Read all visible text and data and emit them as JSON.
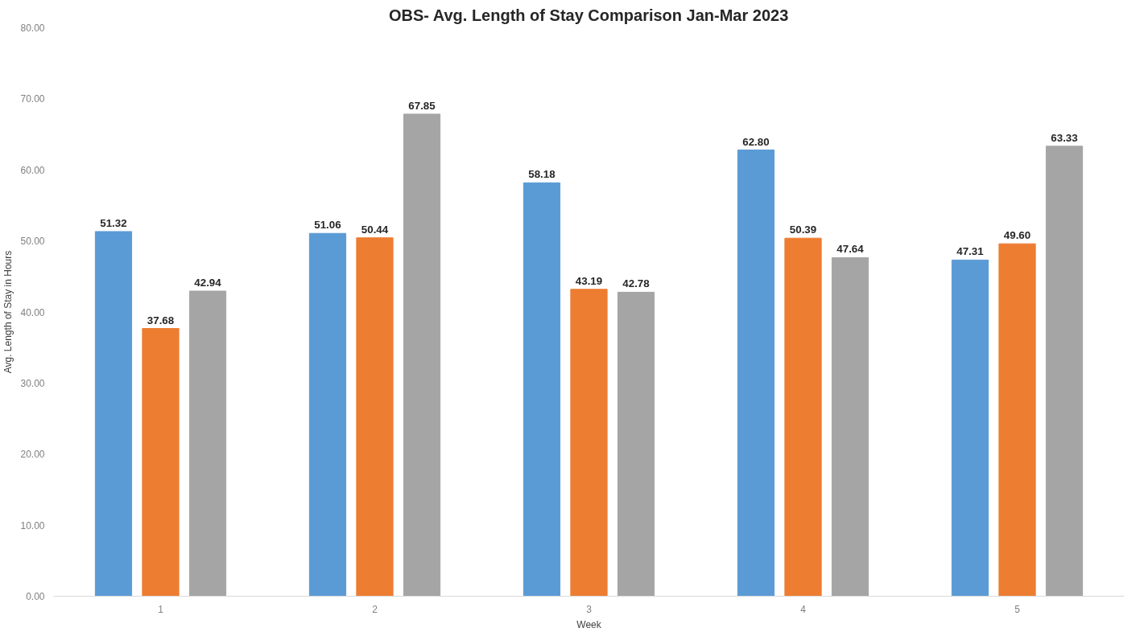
{
  "chart_data": {
    "type": "bar",
    "title": "OBS- Avg. Length of Stay Comparison Jan-Mar 2023",
    "xlabel": "Week",
    "ylabel": "Avg. Length of Stay in Hours",
    "categories": [
      "1",
      "2",
      "3",
      "4",
      "5"
    ],
    "series": [
      {
        "color": "#5b9bd5",
        "values": [
          51.32,
          51.06,
          58.18,
          62.8,
          47.31
        ],
        "value_labels": [
          "51.32",
          "51.06",
          "58.18",
          "62.80",
          "47.31"
        ]
      },
      {
        "color": "#ed7d31",
        "values": [
          37.68,
          50.44,
          43.19,
          50.39,
          49.6
        ],
        "value_labels": [
          "37.68",
          "50.44",
          "43.19",
          "50.39",
          "49.60"
        ]
      },
      {
        "color": "#a5a5a5",
        "values": [
          42.94,
          67.85,
          42.78,
          47.64,
          63.33
        ],
        "value_labels": [
          "42.94",
          "67.85",
          "42.78",
          "47.64",
          "63.33"
        ]
      }
    ],
    "ylim": [
      0,
      80
    ],
    "yticks": [
      {
        "value": 0,
        "label": "0.00"
      },
      {
        "value": 10,
        "label": "10.00"
      },
      {
        "value": 20,
        "label": "20.00"
      },
      {
        "value": 30,
        "label": "30.00"
      },
      {
        "value": 40,
        "label": "40.00"
      },
      {
        "value": 50,
        "label": "50.00"
      },
      {
        "value": 60,
        "label": "60.00"
      },
      {
        "value": 70,
        "label": "70.00"
      },
      {
        "value": 80,
        "label": "80.00"
      }
    ],
    "grid": false
  }
}
